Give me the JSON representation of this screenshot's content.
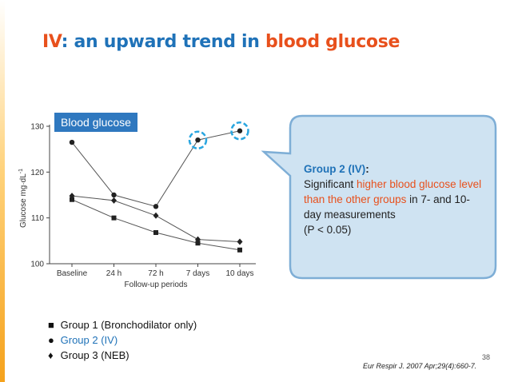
{
  "slide": {
    "title_prefix": "IV",
    "title_middle": ": an upward trend in ",
    "title_highlight": "blood glucose",
    "page_number": "38",
    "citation": "Eur Respir J. 2007 Apr;29(4):660-7."
  },
  "chart_label": "Blood glucose",
  "callout": {
    "heading": "Group 2 (IV)",
    "heading_colon": ":",
    "line1": "Significant ",
    "highlight": "higher blood glucose level than the other groups",
    "rest": " in 7- and 10-day measurements",
    "pvalue": "(P < 0.05)"
  },
  "legend": {
    "items": [
      {
        "symbol": "■",
        "label": "Group 1 (Bronchodilator only)"
      },
      {
        "symbol": "●",
        "label": "Group 2 (IV)"
      },
      {
        "symbol": "♦",
        "label": "Group 3 (NEB)"
      }
    ]
  },
  "colors": {
    "title_blue": "#1f72b8",
    "accent_orange": "#e8501c",
    "callout_fill": "#cfe3f2",
    "callout_stroke": "#7eaed6",
    "highlight_circle": "#2aa6e0",
    "line": "#555555"
  },
  "chart_data": {
    "type": "line",
    "title": "",
    "xlabel": "Follow-up periods",
    "ylabel": "Glucose mg·dL",
    "ylabel_superscript": "-1",
    "categories": [
      "Baseline",
      "24 h",
      "72 h",
      "7 days",
      "10 days"
    ],
    "ylim": [
      100,
      130
    ],
    "yticks": [
      100,
      110,
      120,
      130
    ],
    "series": [
      {
        "name": "Group 1 (Bronchodilator only)",
        "marker": "square",
        "values": [
          114,
          110,
          106.8,
          104.5,
          103
        ]
      },
      {
        "name": "Group 2 (IV)",
        "marker": "circle",
        "values": [
          126.5,
          115,
          112.5,
          127,
          129
        ]
      },
      {
        "name": "Group 3 (NEB)",
        "marker": "diamond",
        "values": [
          114.8,
          113.8,
          110.5,
          105.3,
          104.8
        ]
      }
    ],
    "highlighted_points": [
      {
        "series": 1,
        "index": 3
      },
      {
        "series": 1,
        "index": 4
      }
    ],
    "grid": false,
    "legend": "below chart"
  }
}
